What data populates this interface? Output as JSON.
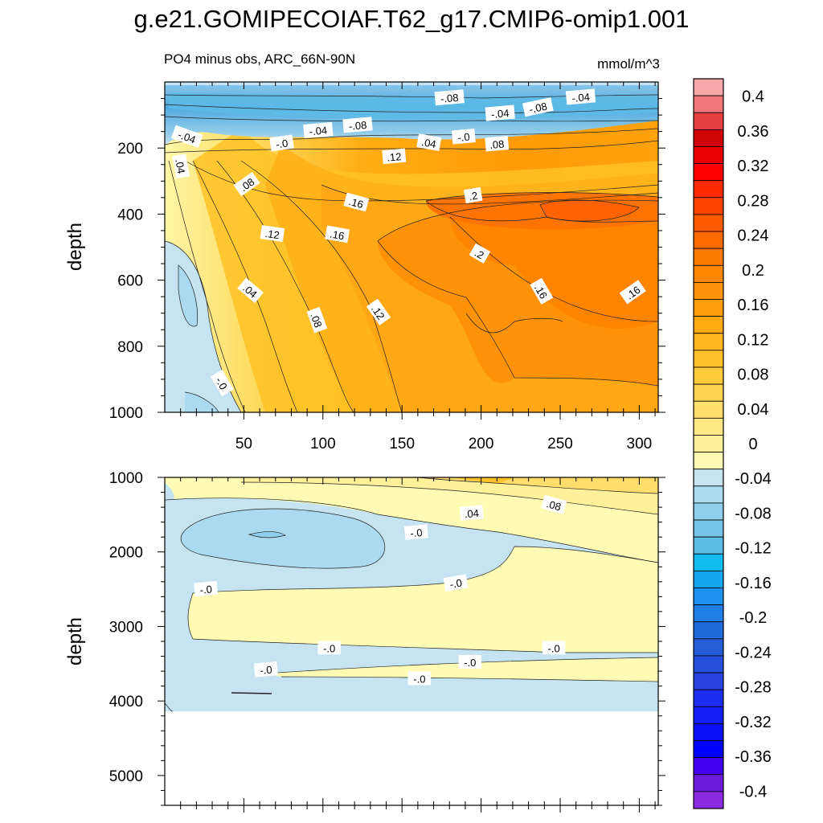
{
  "title": "g.e21.GOMIPECOIAF.T62_g17.CMIP6-omip1.001",
  "subtitle_left": "PO4 minus obs, ARC_66N-90N",
  "subtitle_right": "mmol/m^3",
  "colors": {
    "neg": [
      "#c6e3f2",
      "#abd9ef",
      "#90cfec",
      "#76c5e8",
      "#5dbbe5",
      "#12bbef",
      "#17a7f0",
      "#1c93f0",
      "#1f7fe6",
      "#1f6bdb",
      "#235ed6",
      "#2650db",
      "#2a43e0",
      "#1e2ef0",
      "#141ff5",
      "#0a10f8",
      "#0000ff",
      "#4400f0",
      "#6a1ad8",
      "#8a2be2"
    ],
    "pos": [
      "#fffbb4",
      "#fff09a",
      "#ffe884",
      "#ffde6c",
      "#ffd452",
      "#ffca3c",
      "#ffc02a",
      "#ffb61e",
      "#ffaa12",
      "#ff9e0c",
      "#ff9206",
      "#ff8600",
      "#ff7a00",
      "#ff6a00",
      "#ff5a00",
      "#ff4400",
      "#ff2a00",
      "#ff0000",
      "#e60000",
      "#d10505",
      "#e84040",
      "#f07878",
      "#f8a8a8"
    ]
  },
  "chart_data": [
    {
      "type": "contour",
      "panel": "upper",
      "xlabel": "",
      "ylabel": "depth",
      "xlim": [
        0,
        312
      ],
      "ylim": [
        1000,
        0
      ],
      "x_ticks": [
        "50",
        "100",
        "150",
        "200",
        "250",
        "300"
      ],
      "y_ticks": [
        "200",
        "400",
        "600",
        "800",
        "1000"
      ],
      "contour_labels": [
        {
          "text": "-.08",
          "x": 180,
          "y": 48,
          "rot": -5
        },
        {
          "text": "-.04",
          "x": 212,
          "y": 95,
          "rot": -5
        },
        {
          "text": "-.08",
          "x": 236,
          "y": 77,
          "rot": -12
        },
        {
          "text": "-.04",
          "x": 263,
          "y": 46,
          "rot": -5
        },
        {
          "text": "-.04",
          "x": 14,
          "y": 166,
          "rot": 20
        },
        {
          "text": "-.0",
          "x": 74,
          "y": 186,
          "rot": -8
        },
        {
          "text": "-.04",
          "x": 97,
          "y": 147,
          "rot": -5
        },
        {
          "text": "-.08",
          "x": 122,
          "y": 131,
          "rot": -5
        },
        {
          "text": ".04",
          "x": 167,
          "y": 184,
          "rot": 10
        },
        {
          "text": "-.0",
          "x": 189,
          "y": 166,
          "rot": -5
        },
        {
          "text": ".08",
          "x": 210,
          "y": 188,
          "rot": -5
        },
        {
          "text": ".12",
          "x": 145,
          "y": 226,
          "rot": -5
        },
        {
          "text": ".04",
          "x": 10,
          "y": 255,
          "rot": 80
        },
        {
          "text": ".08",
          "x": 52,
          "y": 310,
          "rot": -35
        },
        {
          "text": ".16",
          "x": 121,
          "y": 365,
          "rot": 15
        },
        {
          "text": ".2",
          "x": 195,
          "y": 344,
          "rot": -10
        },
        {
          "text": ".12",
          "x": 68,
          "y": 460,
          "rot": 8
        },
        {
          "text": ".16",
          "x": 109,
          "y": 462,
          "rot": 10
        },
        {
          "text": ".2",
          "x": 199,
          "y": 520,
          "rot": 30
        },
        {
          "text": ".04",
          "x": 54,
          "y": 632,
          "rot": 40
        },
        {
          "text": ".16",
          "x": 238,
          "y": 634,
          "rot": 60
        },
        {
          "text": ".16",
          "x": 296,
          "y": 637,
          "rot": -35
        },
        {
          "text": ".08",
          "x": 96,
          "y": 721,
          "rot": 70
        },
        {
          "text": ".12",
          "x": 135,
          "y": 697,
          "rot": 55
        },
        {
          "text": "-.0",
          "x": 36,
          "y": 912,
          "rot": 60
        }
      ]
    },
    {
      "type": "contour",
      "panel": "lower",
      "xlabel": "",
      "ylabel": "depth",
      "xlim": [
        0,
        312
      ],
      "ylim": [
        5400,
        1000
      ],
      "y_ticks": [
        "1000",
        "2000",
        "3000",
        "4000",
        "5000"
      ],
      "contour_labels": [
        {
          "text": ".04",
          "x": 194,
          "y": 1480,
          "rot": -5
        },
        {
          "text": ".08",
          "x": 246,
          "y": 1370,
          "rot": 15
        },
        {
          "text": "-.0",
          "x": 159,
          "y": 1740,
          "rot": -5
        },
        {
          "text": "-.0",
          "x": 184,
          "y": 2420,
          "rot": -10
        },
        {
          "text": "-.0",
          "x": 26,
          "y": 2500,
          "rot": -5
        },
        {
          "text": "-.0",
          "x": 104,
          "y": 3290,
          "rot": 0
        },
        {
          "text": "-.0",
          "x": 246,
          "y": 3290,
          "rot": 0
        },
        {
          "text": "-.0",
          "x": 193,
          "y": 3480,
          "rot": 0
        },
        {
          "text": "-.0",
          "x": 64,
          "y": 3580,
          "rot": -5
        },
        {
          "text": "-.0",
          "x": 161,
          "y": 3700,
          "rot": 0
        }
      ]
    }
  ],
  "colorbar": {
    "levels": [
      "0.4",
      "0.36",
      "0.32",
      "0.28",
      "0.24",
      "0.2",
      "0.16",
      "0.12",
      "0.08",
      "0.04",
      "0",
      "-0.04",
      "-0.08",
      "-0.12",
      "-0.16",
      "-0.2",
      "-0.24",
      "-0.28",
      "-0.32",
      "-0.36",
      "-0.4"
    ],
    "min": -0.42,
    "max": 0.42
  }
}
